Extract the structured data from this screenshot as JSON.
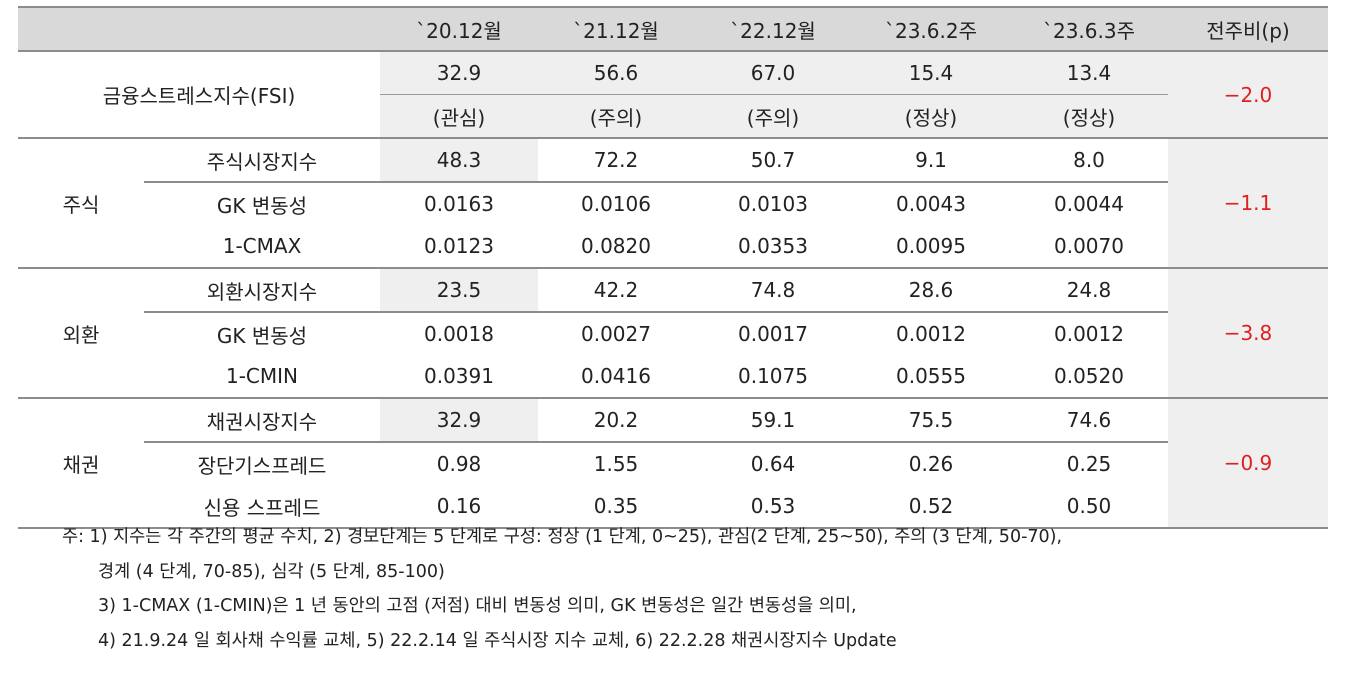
{
  "header": {
    "blank": "",
    "col1": "`20.12월",
    "col2": "`21.12월",
    "col3": "`22.12월",
    "col4": "`23.6.2주",
    "col5": "`23.6.3주",
    "change": "전주비(p)"
  },
  "fsi": {
    "label": "금융스트레스지수(FSI)",
    "values": [
      "32.9",
      "56.6",
      "67.0",
      "15.4",
      "13.4"
    ],
    "levels": [
      "(관심)",
      "(주의)",
      "(주의)",
      "(정상)",
      "(정상)"
    ],
    "change": "−2.0"
  },
  "stock": {
    "label": "주식",
    "change": "−1.1",
    "rows": [
      {
        "name": "주식시장지수",
        "values": [
          "48.3",
          "72.2",
          "50.7",
          "9.1",
          "8.0"
        ]
      },
      {
        "name": "GK 변동성",
        "values": [
          "0.0163",
          "0.0106",
          "0.0103",
          "0.0043",
          "0.0044"
        ]
      },
      {
        "name": "1-CMAX",
        "values": [
          "0.0123",
          "0.0820",
          "0.0353",
          "0.0095",
          "0.0070"
        ]
      }
    ]
  },
  "fx": {
    "label": "외환",
    "change": "−3.8",
    "rows": [
      {
        "name": "외환시장지수",
        "values": [
          "23.5",
          "42.2",
          "74.8",
          "28.6",
          "24.8"
        ]
      },
      {
        "name": "GK 변동성",
        "values": [
          "0.0018",
          "0.0027",
          "0.0017",
          "0.0012",
          "0.0012"
        ]
      },
      {
        "name": "1-CMIN",
        "values": [
          "0.0391",
          "0.0416",
          "0.1075",
          "0.0555",
          "0.0520"
        ]
      }
    ]
  },
  "bond": {
    "label": "채권",
    "change": "−0.9",
    "rows": [
      {
        "name": "채권시장지수",
        "values": [
          "32.9",
          "20.2",
          "59.1",
          "75.5",
          "74.6"
        ]
      },
      {
        "name": "장단기스프레드",
        "values": [
          "0.98",
          "1.55",
          "0.64",
          "0.26",
          "0.25"
        ]
      },
      {
        "name": "신용 스프레드",
        "values": [
          "0.16",
          "0.35",
          "0.53",
          "0.52",
          "0.50"
        ]
      }
    ]
  },
  "notes": {
    "line1": "주: 1) 지수는 각 주간의 평균 수치, 2) 경보단계는 5 단계로 구성: 정상 (1 단계, 0~25), 관심(2 단계, 25~50), 주의 (3 단계, 50-70),",
    "line2": "경계 (4 단계, 70-85), 심각 (5 단계, 85-100)",
    "line3": "3) 1-CMAX (1-CMIN)은 1 년 동안의 고점 (저점) 대비 변동성 의미, GK 변동성은 일간 변동성을 의미,",
    "line4": "4) 21.9.24 일 회사채 수익률 교체, 5) 22.2.14 일 주식시장 지수 교체, 6) 22.2.28 채권시장지수 Update"
  }
}
